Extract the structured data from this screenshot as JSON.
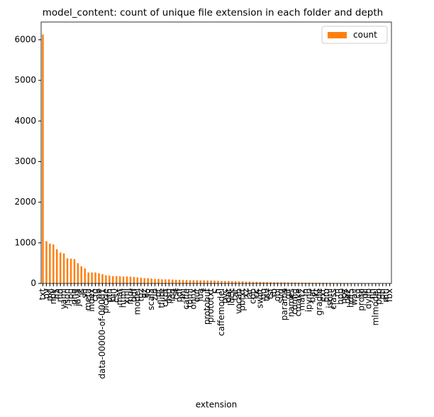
{
  "chart_data": {
    "type": "bar",
    "title": "model_content: count of unique file extension in each folder and depth",
    "xlabel": "extension",
    "legend": "upper right",
    "series": [
      {
        "name": "count",
        "color": "#ff7f0e",
        "values": [
          6130,
          1040,
          980,
          960,
          840,
          760,
          740,
          620,
          610,
          600,
          500,
          420,
          370,
          270,
          270,
          270,
          250,
          230,
          200,
          190,
          180,
          180,
          175,
          170,
          170,
          165,
          160,
          150,
          140,
          130,
          130,
          120,
          110,
          110,
          100,
          100,
          100,
          95,
          90,
          90,
          85,
          85,
          80,
          80,
          80,
          75,
          75,
          75,
          70,
          70,
          65,
          60,
          60,
          60,
          55,
          55,
          50,
          50,
          45,
          45,
          40,
          40,
          38,
          35,
          35,
          33,
          30,
          30,
          28,
          28,
          26,
          25,
          24,
          22,
          22,
          20,
          20,
          18,
          18,
          17,
          16,
          15,
          14,
          13,
          12,
          12,
          11,
          10,
          10,
          9,
          8,
          8,
          7,
          6,
          5,
          5,
          4,
          3,
          3,
          2
        ]
      }
    ],
    "categories": [
      "txt",
      "py",
      "pkl",
      "npy",
      "h5",
      "md",
      "yaml",
      "json",
      "jpg",
      "png",
      "java",
      "js",
      "sh",
      "meta",
      "index",
      "cfg",
      "pb",
      "data-00000-of-00001",
      "pickle",
      "pth",
      "bin",
      "csv",
      "mat",
      "html",
      "xml",
      "mdl",
      "bdf",
      "model",
      "tgz",
      "gz",
      "so",
      "scala",
      "zip",
      "pt",
      "tflite",
      "ckpt",
      "psd",
      "log",
      "rst",
      "pdf",
      "ini",
      "caffe",
      "toml",
      "onnx",
      "out",
      "lua",
      "r",
      "protobuf",
      "prototxt",
      "c",
      "h",
      "caffemodel",
      "pyc",
      "dat",
      "lock",
      "tar",
      "vocab",
      "pbtxt",
      "xz",
      "jar",
      "cpp",
      "cc",
      "swift",
      "go",
      "tsv",
      "tsf",
      "rb",
      "obj",
      "svg",
      "params",
      "gif",
      "names",
      "config",
      "cmake",
      "mat2",
      "in",
      "ipynb",
      "bat",
      "kt",
      "gradle",
      "ext",
      "pro",
      "jsonl",
      "class",
      "m",
      "hpp",
      "npz",
      "bz2",
      "hdf5",
      "wav",
      "cu",
      "proto",
      "dll",
      "dylib",
      "nn",
      "mlmodel",
      "pdb",
      "ptl",
      "mtl",
      "fbx"
    ],
    "ylim": [
      0,
      6436
    ],
    "yticks": [
      0,
      1000,
      2000,
      3000,
      4000,
      5000,
      6000
    ]
  }
}
